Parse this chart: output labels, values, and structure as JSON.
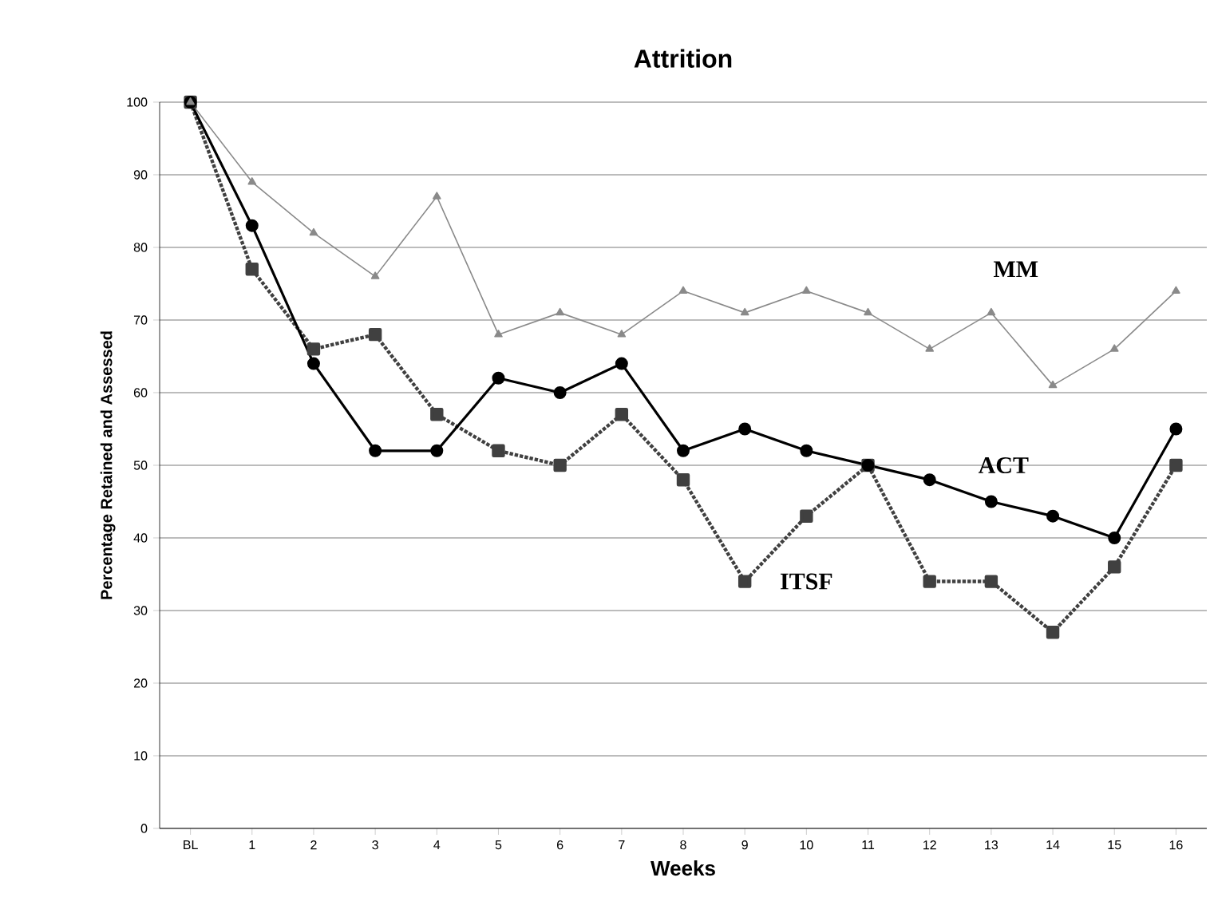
{
  "chart_data": {
    "type": "line",
    "title": "Attrition",
    "xlabel": "Weeks",
    "ylabel": "Percentage Retained and Assessed",
    "categories": [
      "BL",
      "1",
      "2",
      "3",
      "4",
      "5",
      "6",
      "7",
      "8",
      "9",
      "10",
      "11",
      "12",
      "13",
      "14",
      "15",
      "16"
    ],
    "ylim": [
      0,
      100
    ],
    "yticks": [
      0,
      10,
      20,
      30,
      40,
      50,
      60,
      70,
      80,
      90,
      100
    ],
    "grid": "y",
    "legend": false,
    "series": [
      {
        "name": "MM",
        "color": "#8a8a8a",
        "marker": "triangle",
        "line_style": "solid",
        "values": [
          100,
          89,
          82,
          76,
          87,
          68,
          71,
          68,
          74,
          71,
          74,
          71,
          66,
          71,
          61,
          66,
          74
        ]
      },
      {
        "name": "ACT",
        "color": "#000000",
        "marker": "circle",
        "line_style": "solid",
        "values": [
          100,
          83,
          64,
          52,
          52,
          62,
          60,
          64,
          52,
          55,
          52,
          50,
          48,
          45,
          43,
          40,
          55
        ]
      },
      {
        "name": "ITSF",
        "color": "#404040",
        "marker": "square",
        "line_style": "dotted",
        "values": [
          100,
          77,
          66,
          68,
          57,
          52,
          50,
          57,
          48,
          34,
          43,
          50,
          34,
          34,
          27,
          36,
          50
        ]
      }
    ]
  }
}
